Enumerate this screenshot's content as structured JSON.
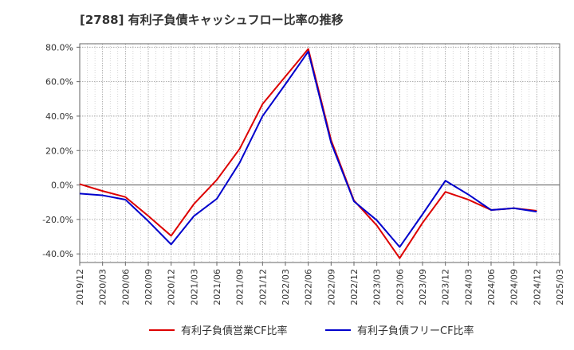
{
  "chart_data": {
    "type": "line",
    "title": "[2788]  有利子負債キャッシュフロー比率の推移",
    "x": [
      "2019/12",
      "2020/03",
      "2020/06",
      "2020/09",
      "2020/12",
      "2021/03",
      "2021/06",
      "2021/09",
      "2021/12",
      "2022/03",
      "2022/06",
      "2022/09",
      "2022/12",
      "2023/03",
      "2023/06",
      "2023/09",
      "2023/12",
      "2024/03",
      "2024/06",
      "2024/09",
      "2024/12",
      "2025/03"
    ],
    "ylim": [
      -45,
      82
    ],
    "yticks": [
      80,
      60,
      40,
      20,
      0,
      -20,
      -40
    ],
    "ytick_labels": [
      "80.0%",
      "60.0%",
      "40.0%",
      "20.0%",
      "0.0%",
      "-20.0%",
      "-40.0%"
    ],
    "grid": true,
    "legend_position": "bottom",
    "series": [
      {
        "name": "有利子負債営業CF比率",
        "color": "#dd0000",
        "values": [
          0.5,
          -3.5,
          -7,
          -18,
          -29.5,
          -11,
          3,
          21,
          47,
          63,
          79,
          26,
          -9,
          -23.5,
          -42.5,
          -22,
          -4,
          -8.5,
          -14.5,
          -13.5,
          -15,
          null
        ]
      },
      {
        "name": "有利子負債フリーCF比率",
        "color": "#0000cc",
        "values": [
          -5,
          -6,
          -8.5,
          -21,
          -34.5,
          -18,
          -8,
          13,
          40,
          58.5,
          77.5,
          24.5,
          -9.5,
          -20.5,
          -36,
          -17,
          2.5,
          -5.5,
          -14.5,
          -13.5,
          -15.5,
          null
        ]
      }
    ]
  }
}
